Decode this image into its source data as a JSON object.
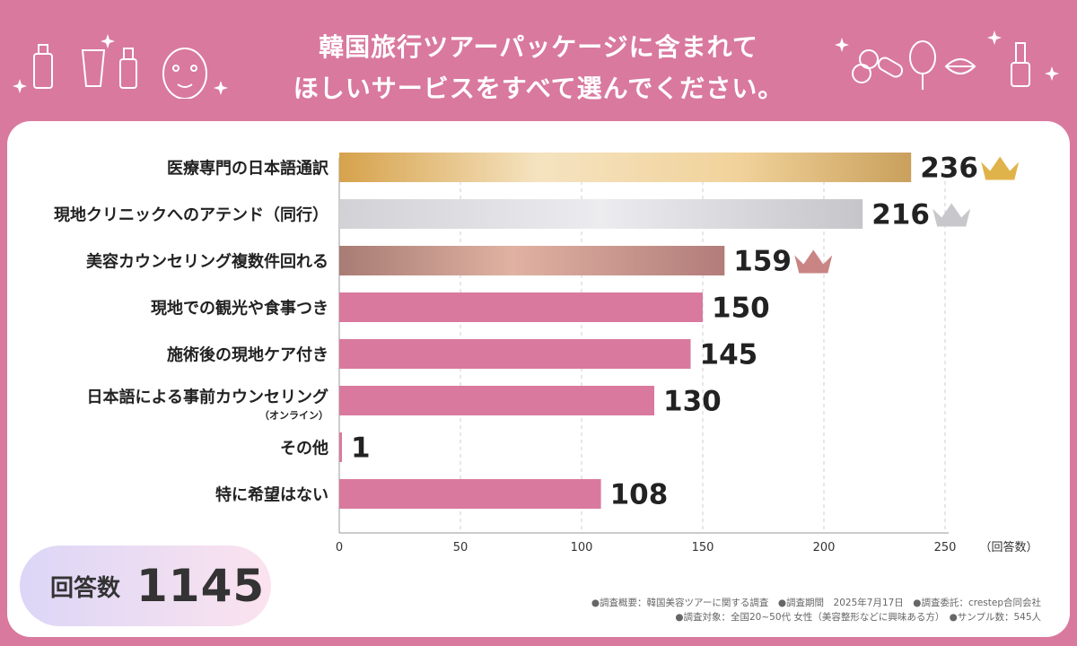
{
  "title_line1": "韓国旅行ツアーパッケージに含まれて",
  "title_line2": "ほしいサービスをすべて選んでください。",
  "response_count": {
    "label": "回答数",
    "value": "1145"
  },
  "notes": {
    "line1": "●調査概要：韓国美容ツアーに関する調査　●調査期間　2025年7月17日　●調査委託：crestep合同会社",
    "line2": "●調査対象：全国20~50代 女性（美容整形などに興味ある方）　●サンプル数：545人"
  },
  "colors": {
    "background": "#d9799e",
    "bar_default": "#d9799e",
    "gold": "#e0b34a",
    "silver": "#c8c8cc",
    "bronze": "#c98584"
  },
  "chart_data": {
    "type": "bar",
    "orientation": "horizontal",
    "categories": [
      "医療専門の日本語通訳",
      "現地クリニックへのアテンド（同行）",
      "美容カウンセリング複数件回れる",
      "現地での観光や食事つき",
      "施術後の現地ケア付き",
      "日本語による事前カウンセリング",
      "その他",
      "特に希望はない"
    ],
    "category_sublabels": [
      "",
      "",
      "",
      "",
      "",
      "（オンライン）",
      "",
      ""
    ],
    "values": [
      236,
      216,
      159,
      150,
      145,
      130,
      1,
      108
    ],
    "rank_icons": [
      "gold-crown",
      "silver-crown",
      "bronze-crown",
      "",
      "",
      "",
      "",
      ""
    ],
    "xlim": [
      0,
      250
    ],
    "ticks": [
      0,
      50,
      100,
      150,
      200,
      250
    ],
    "xlabel": "（回答数）",
    "grid": true
  }
}
